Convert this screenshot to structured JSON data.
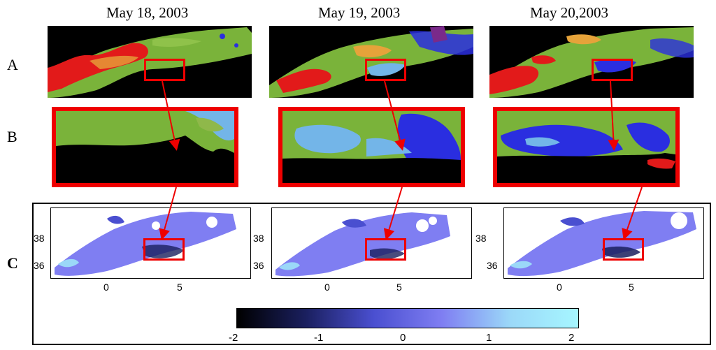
{
  "dates": [
    "May 18, 2003",
    "May 19, 2003",
    "May 20,2003"
  ],
  "row_labels": [
    "A",
    "B",
    "C"
  ],
  "c_plot": {
    "y_ticks": [
      "38",
      "36"
    ],
    "x_ticks": [
      "0",
      "5"
    ]
  },
  "colorbar": {
    "ticks": [
      "-2",
      "-1",
      "0",
      "1",
      "2"
    ],
    "colors": [
      "#000000",
      "#1a1f5e",
      "#4a4fd0",
      "#7f7ef2",
      "#9bd8f8",
      "#a6f6ff"
    ]
  },
  "palette": {
    "land": "#000000",
    "green": "#7ab33a",
    "red": "#e21a1a",
    "orange": "#e6a33a",
    "blue": "#2a2ee0",
    "lightblue": "#73b5e8",
    "highlight": "#e00000"
  }
}
